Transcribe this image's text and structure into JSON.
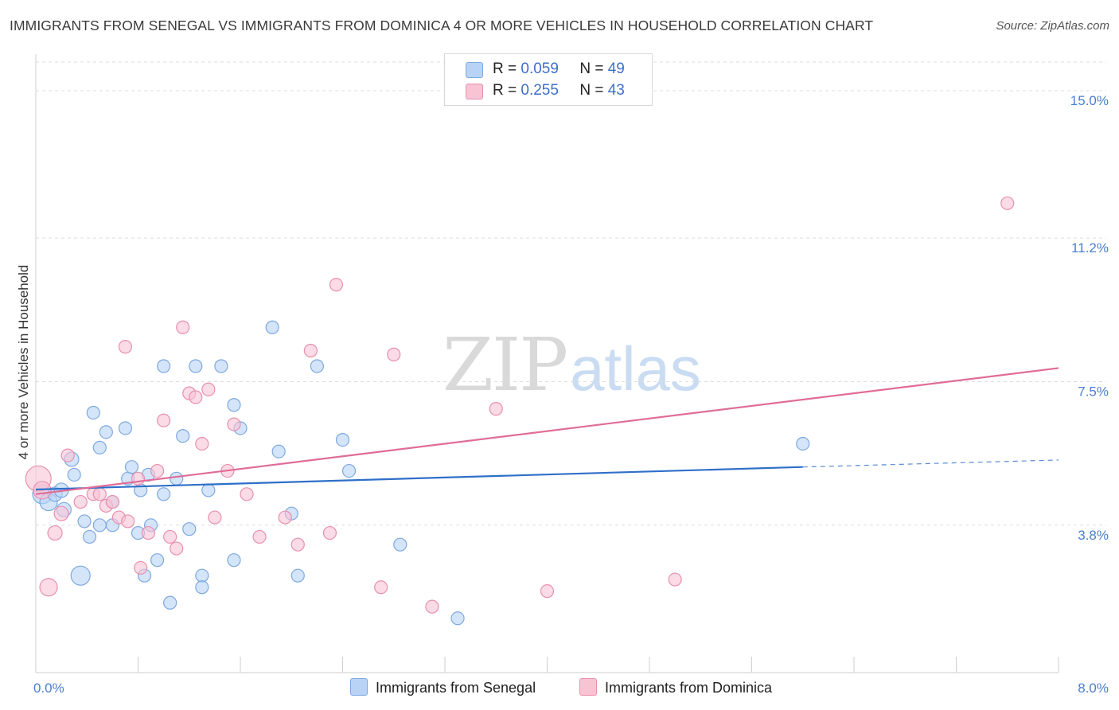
{
  "header": {
    "title": "IMMIGRANTS FROM SENEGAL VS IMMIGRANTS FROM DOMINICA 4 OR MORE VEHICLES IN HOUSEHOLD CORRELATION CHART",
    "source": "Source: ZipAtlas.com"
  },
  "watermark": {
    "zip": "ZIP",
    "atlas": "atlas"
  },
  "legend": {
    "senegal": {
      "r_label": "R =",
      "r_value": "0.059",
      "n_label": "N =",
      "n_value": "49"
    },
    "dominica": {
      "r_label": "R =",
      "r_value": "0.255",
      "n_label": "N =",
      "n_value": "43"
    }
  },
  "bottom_legend": {
    "senegal": "Immigrants from Senegal",
    "dominica": "Immigrants from Dominica"
  },
  "colors": {
    "senegal_fill": "#b8d3f5",
    "senegal_stroke": "#7ea8e0",
    "senegal_line": "#2f6fc8",
    "dominica_fill": "#f8c3d3",
    "dominica_stroke": "#e890ae",
    "dominica_line": "#e06c97",
    "grid": "#dddddd",
    "tick_text": "#4a7fcf"
  },
  "chart_data": {
    "type": "scatter",
    "title": "IMMIGRANTS FROM SENEGAL VS IMMIGRANTS FROM DOMINICA 4 OR MORE VEHICLES IN HOUSEHOLD CORRELATION CHART",
    "xlabel": "",
    "ylabel": "4 or more Vehicles in Household",
    "xlim": [
      0,
      8
    ],
    "ylim": [
      0,
      15.8
    ],
    "x_tick_labels": [
      {
        "value": 0,
        "label": "0.0%"
      },
      {
        "value": 8,
        "label": "8.0%"
      }
    ],
    "y_ticks": [
      {
        "value": 3.8,
        "label": "3.8%"
      },
      {
        "value": 7.5,
        "label": "7.5%"
      },
      {
        "value": 11.2,
        "label": "11.2%"
      },
      {
        "value": 15.0,
        "label": "15.0%"
      }
    ],
    "grid": true,
    "legend_position": "top-center",
    "series": [
      {
        "name": "Immigrants from Senegal",
        "r": 0.059,
        "n": 49,
        "trend": {
          "x0": 0,
          "y0": 4.72,
          "x1": 6.0,
          "y1": 5.3,
          "dashed_to_x": 8.0,
          "dashed_to_y": 5.48
        },
        "points": [
          {
            "x": 0.05,
            "y": 4.6,
            "s": 12
          },
          {
            "x": 0.1,
            "y": 4.4,
            "s": 11
          },
          {
            "x": 0.15,
            "y": 4.6,
            "s": 9
          },
          {
            "x": 0.2,
            "y": 4.7,
            "s": 9
          },
          {
            "x": 0.22,
            "y": 4.2,
            "s": 9
          },
          {
            "x": 0.28,
            "y": 5.5,
            "s": 9
          },
          {
            "x": 0.3,
            "y": 5.1,
            "s": 8
          },
          {
            "x": 0.35,
            "y": 2.5,
            "s": 12
          },
          {
            "x": 0.38,
            "y": 3.9,
            "s": 8
          },
          {
            "x": 0.42,
            "y": 3.5,
            "s": 8
          },
          {
            "x": 0.45,
            "y": 6.7,
            "s": 8
          },
          {
            "x": 0.5,
            "y": 3.8,
            "s": 8
          },
          {
            "x": 0.5,
            "y": 5.8,
            "s": 8
          },
          {
            "x": 0.55,
            "y": 6.2,
            "s": 8
          },
          {
            "x": 0.6,
            "y": 3.8,
            "s": 8
          },
          {
            "x": 0.6,
            "y": 4.4,
            "s": 8
          },
          {
            "x": 0.7,
            "y": 6.3,
            "s": 8
          },
          {
            "x": 0.72,
            "y": 5.0,
            "s": 8
          },
          {
            "x": 0.75,
            "y": 5.3,
            "s": 8
          },
          {
            "x": 0.8,
            "y": 3.6,
            "s": 8
          },
          {
            "x": 0.82,
            "y": 4.7,
            "s": 8
          },
          {
            "x": 0.85,
            "y": 2.5,
            "s": 8
          },
          {
            "x": 0.88,
            "y": 5.1,
            "s": 8
          },
          {
            "x": 0.9,
            "y": 3.8,
            "s": 8
          },
          {
            "x": 0.95,
            "y": 2.9,
            "s": 8
          },
          {
            "x": 1.0,
            "y": 4.6,
            "s": 8
          },
          {
            "x": 1.0,
            "y": 7.9,
            "s": 8
          },
          {
            "x": 1.05,
            "y": 1.8,
            "s": 8
          },
          {
            "x": 1.1,
            "y": 5.0,
            "s": 8
          },
          {
            "x": 1.15,
            "y": 6.1,
            "s": 8
          },
          {
            "x": 1.2,
            "y": 3.7,
            "s": 8
          },
          {
            "x": 1.25,
            "y": 7.9,
            "s": 8
          },
          {
            "x": 1.3,
            "y": 2.5,
            "s": 8
          },
          {
            "x": 1.3,
            "y": 2.2,
            "s": 8
          },
          {
            "x": 1.35,
            "y": 4.7,
            "s": 8
          },
          {
            "x": 1.45,
            "y": 7.9,
            "s": 8
          },
          {
            "x": 1.55,
            "y": 6.9,
            "s": 8
          },
          {
            "x": 1.55,
            "y": 2.9,
            "s": 8
          },
          {
            "x": 1.6,
            "y": 6.3,
            "s": 8
          },
          {
            "x": 1.85,
            "y": 8.9,
            "s": 8
          },
          {
            "x": 1.9,
            "y": 5.7,
            "s": 8
          },
          {
            "x": 2.0,
            "y": 4.1,
            "s": 8
          },
          {
            "x": 2.05,
            "y": 2.5,
            "s": 8
          },
          {
            "x": 2.2,
            "y": 7.9,
            "s": 8
          },
          {
            "x": 2.4,
            "y": 6.0,
            "s": 8
          },
          {
            "x": 2.45,
            "y": 5.2,
            "s": 8
          },
          {
            "x": 2.85,
            "y": 3.3,
            "s": 8
          },
          {
            "x": 3.3,
            "y": 1.4,
            "s": 8
          },
          {
            "x": 6.0,
            "y": 5.9,
            "s": 8
          }
        ]
      },
      {
        "name": "Immigrants from Dominica",
        "r": 0.255,
        "n": 43,
        "trend": {
          "x0": 0,
          "y0": 4.6,
          "x1": 8.0,
          "y1": 7.85
        },
        "points": [
          {
            "x": 0.02,
            "y": 5.0,
            "s": 16
          },
          {
            "x": 0.05,
            "y": 4.7,
            "s": 11
          },
          {
            "x": 0.1,
            "y": 2.2,
            "s": 11
          },
          {
            "x": 0.15,
            "y": 3.6,
            "s": 9
          },
          {
            "x": 0.2,
            "y": 4.1,
            "s": 9
          },
          {
            "x": 0.25,
            "y": 5.6,
            "s": 8
          },
          {
            "x": 0.35,
            "y": 4.4,
            "s": 8
          },
          {
            "x": 0.45,
            "y": 4.6,
            "s": 8
          },
          {
            "x": 0.5,
            "y": 4.6,
            "s": 8
          },
          {
            "x": 0.55,
            "y": 4.3,
            "s": 8
          },
          {
            "x": 0.6,
            "y": 4.4,
            "s": 8
          },
          {
            "x": 0.65,
            "y": 4.0,
            "s": 8
          },
          {
            "x": 0.7,
            "y": 8.4,
            "s": 8
          },
          {
            "x": 0.72,
            "y": 3.9,
            "s": 8
          },
          {
            "x": 0.8,
            "y": 5.0,
            "s": 8
          },
          {
            "x": 0.82,
            "y": 2.7,
            "s": 8
          },
          {
            "x": 0.88,
            "y": 3.6,
            "s": 8
          },
          {
            "x": 0.95,
            "y": 5.2,
            "s": 8
          },
          {
            "x": 1.0,
            "y": 6.5,
            "s": 8
          },
          {
            "x": 1.05,
            "y": 3.5,
            "s": 8
          },
          {
            "x": 1.1,
            "y": 3.2,
            "s": 8
          },
          {
            "x": 1.15,
            "y": 8.9,
            "s": 8
          },
          {
            "x": 1.2,
            "y": 7.2,
            "s": 8
          },
          {
            "x": 1.25,
            "y": 7.1,
            "s": 8
          },
          {
            "x": 1.3,
            "y": 5.9,
            "s": 8
          },
          {
            "x": 1.35,
            "y": 7.3,
            "s": 8
          },
          {
            "x": 1.4,
            "y": 4.0,
            "s": 8
          },
          {
            "x": 1.5,
            "y": 5.2,
            "s": 8
          },
          {
            "x": 1.55,
            "y": 6.4,
            "s": 8
          },
          {
            "x": 1.65,
            "y": 4.6,
            "s": 8
          },
          {
            "x": 1.75,
            "y": 3.5,
            "s": 8
          },
          {
            "x": 1.95,
            "y": 4.0,
            "s": 8
          },
          {
            "x": 2.05,
            "y": 3.3,
            "s": 8
          },
          {
            "x": 2.15,
            "y": 8.3,
            "s": 8
          },
          {
            "x": 2.3,
            "y": 3.6,
            "s": 8
          },
          {
            "x": 2.35,
            "y": 10.0,
            "s": 8
          },
          {
            "x": 2.7,
            "y": 2.2,
            "s": 8
          },
          {
            "x": 2.8,
            "y": 8.2,
            "s": 8
          },
          {
            "x": 3.1,
            "y": 1.7,
            "s": 8
          },
          {
            "x": 3.6,
            "y": 6.8,
            "s": 8
          },
          {
            "x": 4.0,
            "y": 2.1,
            "s": 8
          },
          {
            "x": 5.0,
            "y": 2.4,
            "s": 8
          },
          {
            "x": 7.6,
            "y": 12.1,
            "s": 8
          }
        ]
      }
    ]
  }
}
